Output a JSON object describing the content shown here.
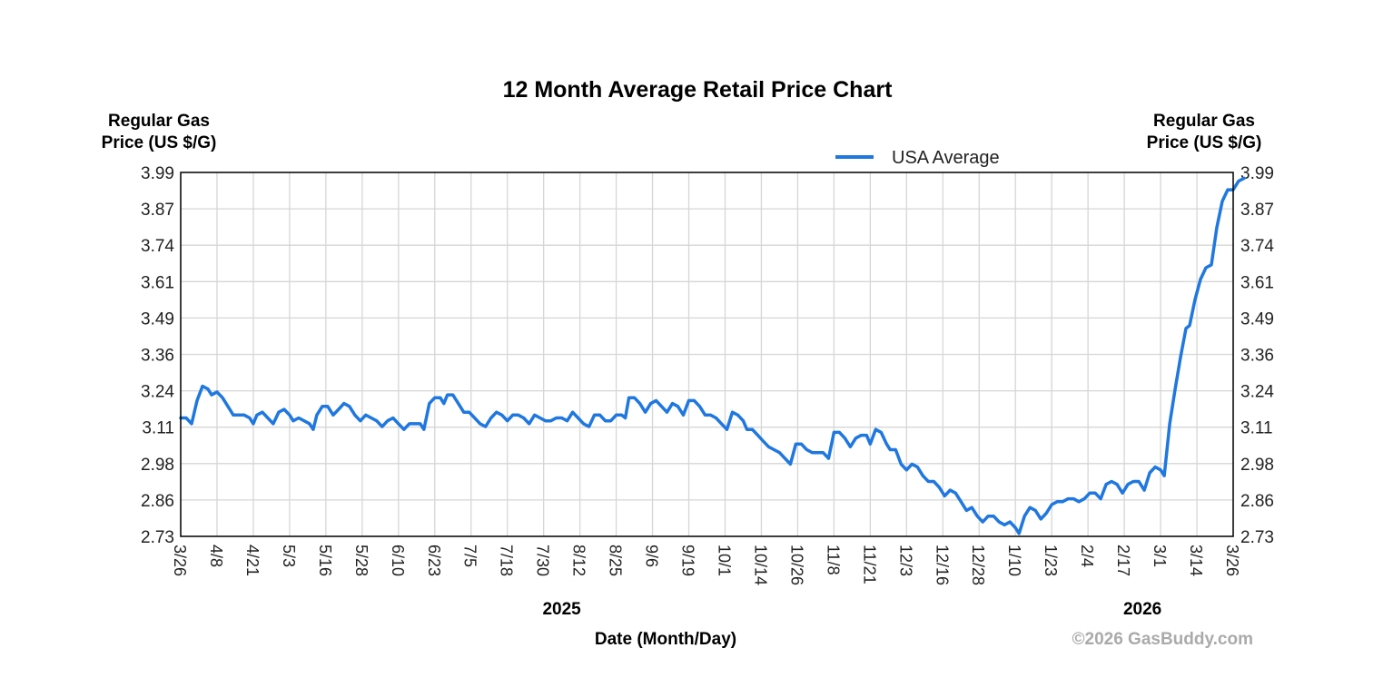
{
  "chart_data": {
    "type": "line",
    "title": "12 Month Average Retail Price Chart",
    "ylabel_left": [
      "Regular Gas",
      "Price (US $/G)"
    ],
    "ylabel_right": [
      "Regular Gas",
      "Price (US $/G)"
    ],
    "xlabel": "Date (Month/Day)",
    "ylim": [
      2.73,
      3.99
    ],
    "yticks": [
      "3.99",
      "3.87",
      "3.74",
      "3.61",
      "3.49",
      "3.36",
      "3.24",
      "3.11",
      "2.98",
      "2.86",
      "2.73"
    ],
    "xticks": [
      "3/26",
      "4/8",
      "4/21",
      "5/3",
      "5/16",
      "5/28",
      "6/10",
      "6/23",
      "7/5",
      "7/18",
      "7/30",
      "8/12",
      "8/25",
      "9/6",
      "9/19",
      "10/1",
      "10/14",
      "10/26",
      "11/8",
      "11/21",
      "12/3",
      "12/16",
      "12/28",
      "1/10",
      "1/23",
      "2/4",
      "2/17",
      "3/1",
      "3/14",
      "3/26"
    ],
    "year_labels": [
      {
        "label": "2025",
        "tick_index": 10.5
      },
      {
        "label": "2026",
        "tick_index": 26.5
      }
    ],
    "grid": true,
    "legend_position": "top-right",
    "series": [
      {
        "name": "USA Average",
        "color": "#1f77e0",
        "points": [
          [
            0,
            3.14
          ],
          [
            0.15,
            3.14
          ],
          [
            0.3,
            3.12
          ],
          [
            0.45,
            3.2
          ],
          [
            0.6,
            3.25
          ],
          [
            0.75,
            3.24
          ],
          [
            0.85,
            3.22
          ],
          [
            1.0,
            3.23
          ],
          [
            1.15,
            3.21
          ],
          [
            1.3,
            3.18
          ],
          [
            1.45,
            3.15
          ],
          [
            1.6,
            3.15
          ],
          [
            1.75,
            3.15
          ],
          [
            1.9,
            3.14
          ],
          [
            2.0,
            3.12
          ],
          [
            2.1,
            3.15
          ],
          [
            2.25,
            3.16
          ],
          [
            2.4,
            3.14
          ],
          [
            2.55,
            3.12
          ],
          [
            2.7,
            3.16
          ],
          [
            2.85,
            3.17
          ],
          [
            3.0,
            3.15
          ],
          [
            3.1,
            3.13
          ],
          [
            3.25,
            3.14
          ],
          [
            3.4,
            3.13
          ],
          [
            3.55,
            3.12
          ],
          [
            3.65,
            3.1
          ],
          [
            3.75,
            3.15
          ],
          [
            3.9,
            3.18
          ],
          [
            4.05,
            3.18
          ],
          [
            4.2,
            3.15
          ],
          [
            4.35,
            3.17
          ],
          [
            4.5,
            3.19
          ],
          [
            4.65,
            3.18
          ],
          [
            4.8,
            3.15
          ],
          [
            4.95,
            3.13
          ],
          [
            5.1,
            3.15
          ],
          [
            5.25,
            3.14
          ],
          [
            5.4,
            3.13
          ],
          [
            5.55,
            3.11
          ],
          [
            5.7,
            3.13
          ],
          [
            5.85,
            3.14
          ],
          [
            6.0,
            3.12
          ],
          [
            6.15,
            3.1
          ],
          [
            6.3,
            3.12
          ],
          [
            6.45,
            3.12
          ],
          [
            6.6,
            3.12
          ],
          [
            6.7,
            3.1
          ],
          [
            6.85,
            3.19
          ],
          [
            7.0,
            3.21
          ],
          [
            7.15,
            3.21
          ],
          [
            7.25,
            3.19
          ],
          [
            7.35,
            3.22
          ],
          [
            7.5,
            3.22
          ],
          [
            7.65,
            3.19
          ],
          [
            7.8,
            3.16
          ],
          [
            7.95,
            3.16
          ],
          [
            8.1,
            3.14
          ],
          [
            8.25,
            3.12
          ],
          [
            8.4,
            3.11
          ],
          [
            8.55,
            3.14
          ],
          [
            8.7,
            3.16
          ],
          [
            8.85,
            3.15
          ],
          [
            9.0,
            3.13
          ],
          [
            9.15,
            3.15
          ],
          [
            9.3,
            3.15
          ],
          [
            9.45,
            3.14
          ],
          [
            9.6,
            3.12
          ],
          [
            9.75,
            3.15
          ],
          [
            9.9,
            3.14
          ],
          [
            10.05,
            3.13
          ],
          [
            10.2,
            3.13
          ],
          [
            10.35,
            3.14
          ],
          [
            10.5,
            3.14
          ],
          [
            10.65,
            3.13
          ],
          [
            10.8,
            3.16
          ],
          [
            10.95,
            3.14
          ],
          [
            11.1,
            3.12
          ],
          [
            11.25,
            3.11
          ],
          [
            11.4,
            3.15
          ],
          [
            11.55,
            3.15
          ],
          [
            11.7,
            3.13
          ],
          [
            11.85,
            3.13
          ],
          [
            12.0,
            3.15
          ],
          [
            12.15,
            3.15
          ],
          [
            12.25,
            3.14
          ],
          [
            12.35,
            3.21
          ],
          [
            12.5,
            3.21
          ],
          [
            12.65,
            3.19
          ],
          [
            12.8,
            3.16
          ],
          [
            12.95,
            3.19
          ],
          [
            13.1,
            3.2
          ],
          [
            13.25,
            3.18
          ],
          [
            13.4,
            3.16
          ],
          [
            13.55,
            3.19
          ],
          [
            13.7,
            3.18
          ],
          [
            13.85,
            3.15
          ],
          [
            14.0,
            3.2
          ],
          [
            14.15,
            3.2
          ],
          [
            14.3,
            3.18
          ],
          [
            14.45,
            3.15
          ],
          [
            14.6,
            3.15
          ],
          [
            14.75,
            3.14
          ],
          [
            14.9,
            3.12
          ],
          [
            15.05,
            3.1
          ],
          [
            15.2,
            3.16
          ],
          [
            15.35,
            3.15
          ],
          [
            15.5,
            3.13
          ],
          [
            15.6,
            3.1
          ],
          [
            15.75,
            3.1
          ],
          [
            15.9,
            3.08
          ],
          [
            16.05,
            3.06
          ],
          [
            16.2,
            3.04
          ],
          [
            16.35,
            3.03
          ],
          [
            16.5,
            3.02
          ],
          [
            16.65,
            3.0
          ],
          [
            16.8,
            2.98
          ],
          [
            16.95,
            3.05
          ],
          [
            17.1,
            3.05
          ],
          [
            17.25,
            3.03
          ],
          [
            17.4,
            3.02
          ],
          [
            17.55,
            3.02
          ],
          [
            17.7,
            3.02
          ],
          [
            17.85,
            3.0
          ],
          [
            18.0,
            3.09
          ],
          [
            18.15,
            3.09
          ],
          [
            18.3,
            3.07
          ],
          [
            18.45,
            3.04
          ],
          [
            18.6,
            3.07
          ],
          [
            18.75,
            3.08
          ],
          [
            18.9,
            3.08
          ],
          [
            19.0,
            3.05
          ],
          [
            19.15,
            3.1
          ],
          [
            19.3,
            3.09
          ],
          [
            19.45,
            3.05
          ],
          [
            19.55,
            3.03
          ],
          [
            19.7,
            3.03
          ],
          [
            19.85,
            2.98
          ],
          [
            20.0,
            2.96
          ],
          [
            20.15,
            2.98
          ],
          [
            20.3,
            2.97
          ],
          [
            20.45,
            2.94
          ],
          [
            20.6,
            2.92
          ],
          [
            20.75,
            2.92
          ],
          [
            20.9,
            2.9
          ],
          [
            21.05,
            2.87
          ],
          [
            21.2,
            2.89
          ],
          [
            21.35,
            2.88
          ],
          [
            21.5,
            2.85
          ],
          [
            21.65,
            2.82
          ],
          [
            21.8,
            2.83
          ],
          [
            21.95,
            2.8
          ],
          [
            22.1,
            2.78
          ],
          [
            22.25,
            2.8
          ],
          [
            22.4,
            2.8
          ],
          [
            22.55,
            2.78
          ],
          [
            22.7,
            2.77
          ],
          [
            22.85,
            2.78
          ],
          [
            23.0,
            2.76
          ],
          [
            23.1,
            2.74
          ],
          [
            23.25,
            2.8
          ],
          [
            23.4,
            2.83
          ],
          [
            23.55,
            2.82
          ],
          [
            23.7,
            2.79
          ],
          [
            23.85,
            2.81
          ],
          [
            24.0,
            2.84
          ],
          [
            24.15,
            2.85
          ],
          [
            24.3,
            2.85
          ],
          [
            24.45,
            2.86
          ],
          [
            24.6,
            2.86
          ],
          [
            24.75,
            2.85
          ],
          [
            24.9,
            2.86
          ],
          [
            25.05,
            2.88
          ],
          [
            25.2,
            2.88
          ],
          [
            25.35,
            2.86
          ],
          [
            25.5,
            2.91
          ],
          [
            25.65,
            2.92
          ],
          [
            25.8,
            2.91
          ],
          [
            25.95,
            2.88
          ],
          [
            26.1,
            2.91
          ],
          [
            26.25,
            2.92
          ],
          [
            26.4,
            2.92
          ],
          [
            26.55,
            2.89
          ],
          [
            26.7,
            2.95
          ],
          [
            26.85,
            2.97
          ],
          [
            27.0,
            2.96
          ],
          [
            27.1,
            2.94
          ],
          [
            27.25,
            3.12
          ],
          [
            27.4,
            3.24
          ],
          [
            27.55,
            3.35
          ],
          [
            27.7,
            3.45
          ],
          [
            27.8,
            3.46
          ],
          [
            27.95,
            3.55
          ],
          [
            28.1,
            3.62
          ],
          [
            28.25,
            3.66
          ],
          [
            28.4,
            3.67
          ],
          [
            28.55,
            3.8
          ],
          [
            28.7,
            3.89
          ],
          [
            28.85,
            3.93
          ],
          [
            29.0,
            3.93
          ],
          [
            29.15,
            3.96
          ],
          [
            29.3,
            3.97
          ]
        ]
      }
    ]
  },
  "credit": "©2026 GasBuddy.com"
}
